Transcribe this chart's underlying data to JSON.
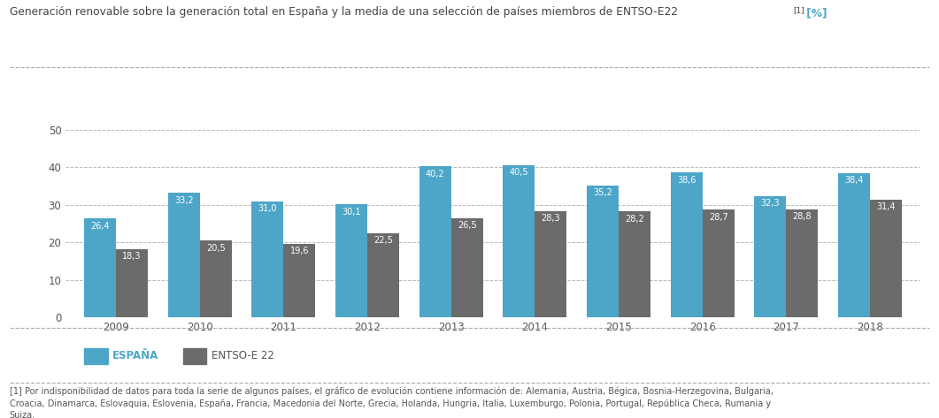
{
  "years": [
    "2009",
    "2010",
    "2011",
    "2012",
    "2013",
    "2014",
    "2015",
    "2016",
    "2017",
    "2018"
  ],
  "espana": [
    26.4,
    33.2,
    31.0,
    30.1,
    40.2,
    40.5,
    35.2,
    38.6,
    32.3,
    38.4
  ],
  "entso": [
    18.3,
    20.5,
    19.6,
    22.5,
    26.5,
    28.3,
    28.2,
    28.7,
    28.8,
    31.4
  ],
  "espana_color": "#4da6c8",
  "entso_color": "#6b6b6b",
  "title_main": "Generación renovable sobre la generación total en España y la media de una selección de países miembros de ENTSO-E22",
  "title_super": "[1]",
  "title_unit": " [%]",
  "ylim": [
    0,
    60
  ],
  "yticks": [
    0,
    10,
    20,
    30,
    40,
    50
  ],
  "legend_espana": "ESPAÑA",
  "legend_entso": "ENTSO-E 22",
  "footnote": "[1] Por indisponibilidad de datos para toda la serie de algunos países, el gráfico de evolución contiene información de: Alemania, Austria, Bégica, Bosnia-Herzegovina, Bulgaria,\nCroacia, Dinamarca, Eslovaquia, Eslovenia, España, Francia, Macedonia del Norte, Grecia, Holanda, Hungria, Italia, Luxemburgo, Polonia, Portugal, República Checa, Rumania y\nSuiza.",
  "background_color": "#ffffff",
  "bar_width": 0.38,
  "separator_color": "#aaaaaa",
  "text_color": "#555555",
  "title_color": "#444444"
}
